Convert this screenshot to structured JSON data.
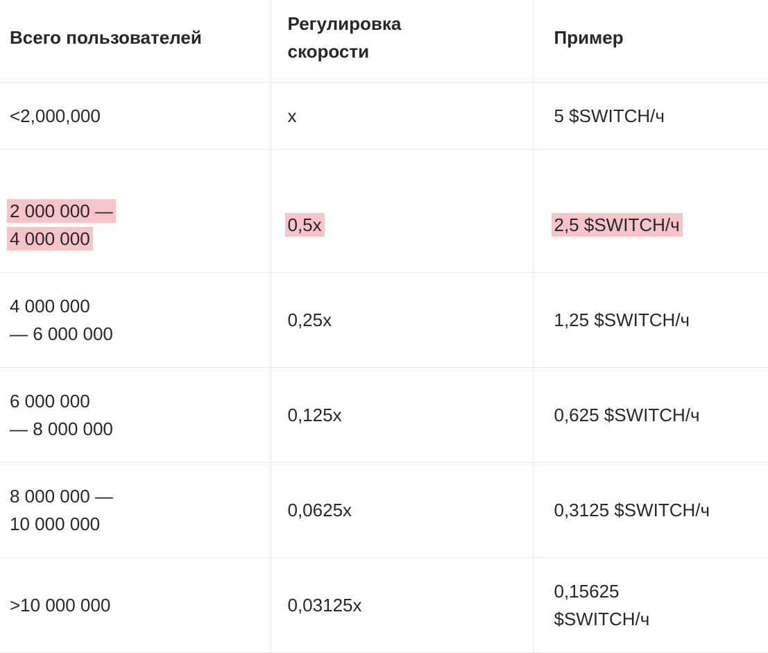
{
  "colors": {
    "text": "#26282b",
    "border": "#e8e8e9",
    "highlight": "#f6c3c7",
    "background": "#ffffff"
  },
  "table": {
    "columns": [
      {
        "label": "Всего пользователей"
      },
      {
        "label": "Регулировка\nскорости"
      },
      {
        "label": "Пример"
      }
    ],
    "rows": [
      {
        "users": "<2,000,000",
        "speed_adjustment": "x",
        "example": "5 $SWITCH/ч",
        "highlighted": false
      },
      {
        "users": "2 000 000 —\n4 000 000",
        "speed_adjustment": "0,5x",
        "example": "2,5 $SWITCH/ч",
        "highlighted": true
      },
      {
        "users": "4 000 000\n— 6 000 000",
        "speed_adjustment": "0,25x",
        "example": "1,25 $SWITCH/ч",
        "highlighted": false
      },
      {
        "users": "6 000 000\n— 8 000 000",
        "speed_adjustment": "0,125x",
        "example": "0,625 $SWITCH/ч",
        "highlighted": false
      },
      {
        "users": "8 000 000 —\n10 000 000",
        "speed_adjustment": "0,0625x",
        "example": "0,3125 $SWITCH/ч",
        "highlighted": false
      },
      {
        "users": ">10 000 000",
        "speed_adjustment": "0,03125x",
        "example": "0,15625\n$SWITCH/ч",
        "highlighted": false
      }
    ]
  }
}
